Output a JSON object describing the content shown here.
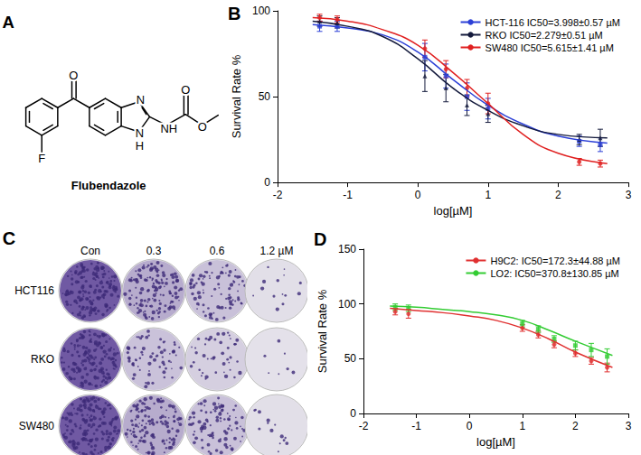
{
  "panel_A": {
    "title": "A",
    "atoms": [
      "O",
      "F",
      "N",
      "N",
      "H",
      "NH",
      "O",
      "O"
    ],
    "name": "Flubendazole"
  },
  "chart_data": [
    {
      "type": "line",
      "title": "B",
      "xlabel": "log[µM]",
      "ylabel": "Survival Rate %",
      "xlim": [
        -2,
        3
      ],
      "xticks": [
        -2,
        -1,
        0,
        1,
        2,
        3
      ],
      "ylim": [
        0,
        100
      ],
      "yticks": [
        0,
        50,
        100
      ],
      "grid": false,
      "legend": "upper right",
      "x": [
        -1.4,
        -1.15,
        0.1,
        0.4,
        0.7,
        1.0,
        2.3,
        2.6
      ],
      "fit_x": [
        -1.5,
        -1,
        -0.5,
        0,
        0.5,
        1,
        1.5,
        2,
        2.7
      ],
      "series": [
        {
          "name": "HCT-116 IC50=3.998±0.57 µM",
          "color": "#2b3fd6",
          "marker": "square",
          "values": [
            91,
            91,
            73,
            62,
            50,
            43,
            24,
            22
          ],
          "errors": [
            3,
            3,
            8,
            7,
            8,
            6,
            3,
            4
          ],
          "fit": [
            92,
            90,
            86,
            76,
            60,
            45,
            34,
            27,
            23
          ]
        },
        {
          "name": "RKO IC50=2.279±0.51 µM",
          "color": "#141a3c",
          "marker": "triangle",
          "values": [
            94,
            93,
            62,
            55,
            45,
            40,
            25,
            26
          ],
          "errors": [
            3,
            3,
            9,
            8,
            6,
            5,
            3,
            5
          ],
          "fit": [
            94,
            91,
            85,
            72,
            55,
            42,
            33,
            28,
            26
          ]
        },
        {
          "name": "SW480 IC50=5.615±1.41 µM",
          "color": "#e02020",
          "marker": "circle",
          "values": [
            96,
            95,
            78,
            66,
            55,
            46,
            12,
            11
          ],
          "errors": [
            2,
            2,
            5,
            5,
            5,
            6,
            2,
            2
          ],
          "fit": [
            96,
            94,
            89,
            80,
            64,
            46,
            28,
            17,
            11
          ]
        }
      ]
    },
    {
      "type": "line",
      "title": "D",
      "xlabel": "log[µM]",
      "ylabel": "Survival Rate %",
      "xlim": [
        -2,
        3
      ],
      "xticks": [
        -2,
        -1,
        0,
        1,
        2,
        3
      ],
      "ylim": [
        0,
        150
      ],
      "yticks": [
        0,
        50,
        100,
        150
      ],
      "grid": false,
      "legend": "upper right",
      "x": [
        -1.4,
        -1.15,
        1.0,
        1.3,
        1.6,
        2.0,
        2.3,
        2.6
      ],
      "fit_x": [
        -1.5,
        -1,
        -0.5,
        0,
        0.5,
        1,
        1.5,
        2,
        2.7
      ],
      "series": [
        {
          "name": "H9C2: IC50=172.3±44.88 µM",
          "color": "#e03030",
          "marker": "circle",
          "values": [
            93,
            91,
            78,
            72,
            63,
            55,
            48,
            42
          ],
          "errors": [
            3,
            4,
            3,
            3,
            3,
            3,
            3,
            4
          ],
          "fit": [
            96,
            94,
            92,
            89,
            85,
            78,
            68,
            56,
            42
          ]
        },
        {
          "name": "LO2: IC50=370.8±130.85 µM",
          "color": "#33cc33",
          "marker": "square",
          "values": [
            97,
            96,
            82,
            77,
            68,
            62,
            58,
            52
          ],
          "errors": [
            3,
            3,
            3,
            3,
            3,
            4,
            6,
            7
          ],
          "fit": [
            98,
            97,
            95,
            93,
            90,
            85,
            76,
            66,
            53
          ]
        }
      ]
    }
  ],
  "panel_C": {
    "title": "C",
    "columns": [
      "Con",
      "0.3",
      "0.6",
      "1.2 µM"
    ],
    "rows": [
      "HCT116",
      "RKO",
      "SW480"
    ]
  }
}
